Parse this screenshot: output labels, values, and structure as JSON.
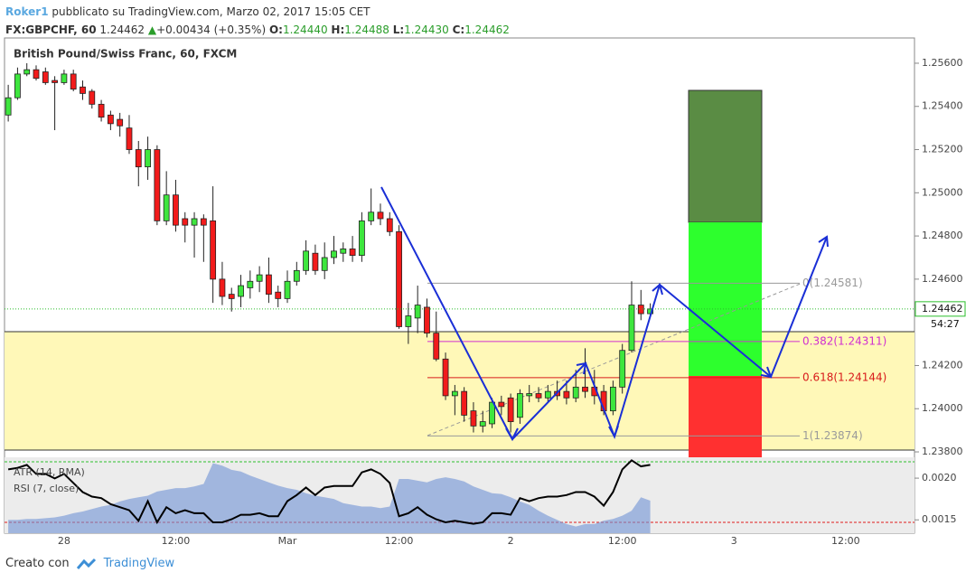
{
  "header": {
    "author": "Roker1",
    "published": "pubblicato su TradingView.com, Marzo 02, 2017 15:05 CET",
    "symbol": "FX:GBPCHF, 60",
    "last": "1.24462",
    "change": "+0.00434 (+0.35%)",
    "ohlc": [
      {
        "key": "O:",
        "value": "1.24440"
      },
      {
        "key": "H:",
        "value": "1.24488"
      },
      {
        "key": "L:",
        "value": "1.24430"
      },
      {
        "key": "C:",
        "value": "1.24462"
      }
    ]
  },
  "chart_data": [
    {
      "type": "candlestick",
      "title": "British Pound/Swiss Franc, 60, FXCM",
      "up_color": "#3ee63e",
      "down_color": "#f21b1b",
      "x": [
        -6,
        -5,
        -4,
        -3,
        -2,
        -1,
        0,
        1,
        2,
        3,
        4,
        5,
        6,
        7,
        8,
        9,
        10,
        11,
        12,
        13,
        14,
        15,
        16,
        17,
        18,
        19,
        20,
        21,
        22,
        23,
        24,
        25,
        26,
        27,
        28,
        29,
        30,
        31,
        32,
        33,
        34,
        35,
        36,
        37,
        38,
        39,
        40,
        41,
        42,
        43,
        44,
        45,
        46,
        47,
        48,
        49,
        50,
        51,
        52,
        53,
        54,
        55,
        56,
        57,
        58,
        59,
        60,
        61,
        62,
        63
      ],
      "open": [
        1.2536,
        1.2544,
        1.2555,
        1.2557,
        1.2556,
        1.2552,
        1.2551,
        1.2555,
        1.2549,
        1.2547,
        1.2541,
        1.2536,
        1.2534,
        1.253,
        1.252,
        1.2512,
        1.252,
        1.2487,
        1.2499,
        1.2488,
        1.2485,
        1.2488,
        1.2487,
        1.246,
        1.2453,
        1.2452,
        1.2456,
        1.2459,
        1.2462,
        1.2454,
        1.2451,
        1.2459,
        1.2464,
        1.2472,
        1.2464,
        1.247,
        1.2472,
        1.2474,
        1.2471,
        1.2487,
        1.2491,
        1.2488,
        1.2482,
        1.2438,
        1.2442,
        1.2447,
        1.2435,
        1.2423,
        1.2406,
        1.2408,
        1.2399,
        1.2392,
        1.2393,
        1.2403,
        1.2405,
        1.2396,
        1.2406,
        1.2407,
        1.2405,
        1.2408,
        1.2408,
        1.2405,
        1.241,
        1.241,
        1.2408,
        1.2399,
        1.241,
        1.2427,
        1.2448,
        1.2444
      ],
      "high": [
        1.255,
        1.2558,
        1.256,
        1.2559,
        1.2558,
        1.2554,
        1.2557,
        1.2557,
        1.2552,
        1.2548,
        1.2543,
        1.2538,
        1.2537,
        1.2536,
        1.2524,
        1.2526,
        1.2522,
        1.251,
        1.2506,
        1.2491,
        1.2491,
        1.249,
        1.2503,
        1.2468,
        1.2456,
        1.2462,
        1.2464,
        1.2466,
        1.247,
        1.2457,
        1.2464,
        1.2468,
        1.2478,
        1.2476,
        1.2477,
        1.248,
        1.2477,
        1.248,
        1.2491,
        1.2502,
        1.2495,
        1.2491,
        1.2485,
        1.2449,
        1.2457,
        1.2451,
        1.2445,
        1.2426,
        1.2411,
        1.241,
        1.2403,
        1.2399,
        1.2405,
        1.2406,
        1.2407,
        1.2409,
        1.2411,
        1.241,
        1.2411,
        1.2413,
        1.2413,
        1.2418,
        1.2428,
        1.2418,
        1.2411,
        1.2413,
        1.243,
        1.2459,
        1.2455,
        1.24488
      ],
      "low": [
        1.2533,
        1.2543,
        1.2554,
        1.2552,
        1.255,
        1.2529,
        1.255,
        1.2547,
        1.2543,
        1.2539,
        1.2533,
        1.2529,
        1.2526,
        1.2518,
        1.2503,
        1.2506,
        1.2485,
        1.2485,
        1.2482,
        1.2477,
        1.247,
        1.2468,
        1.2449,
        1.2448,
        1.2445,
        1.2447,
        1.2451,
        1.2454,
        1.2449,
        1.2447,
        1.2449,
        1.2457,
        1.2462,
        1.2462,
        1.246,
        1.2467,
        1.2468,
        1.2468,
        1.2468,
        1.2485,
        1.2485,
        1.248,
        1.2437,
        1.243,
        1.2435,
        1.2433,
        1.2422,
        1.2404,
        1.2397,
        1.2394,
        1.2389,
        1.2389,
        1.2391,
        1.2397,
        1.2389,
        1.2393,
        1.2403,
        1.2403,
        1.2403,
        1.2404,
        1.2402,
        1.2403,
        1.2405,
        1.2402,
        1.2397,
        1.2397,
        1.2407,
        1.2426,
        1.2441,
        1.2443
      ],
      "close": [
        1.2544,
        1.2555,
        1.2557,
        1.2553,
        1.2551,
        1.2551,
        1.2555,
        1.2548,
        1.2546,
        1.2541,
        1.2535,
        1.2532,
        1.2531,
        1.252,
        1.2512,
        1.252,
        1.2487,
        1.2499,
        1.2485,
        1.2485,
        1.2488,
        1.2485,
        1.246,
        1.2452,
        1.2451,
        1.2457,
        1.2459,
        1.2462,
        1.2453,
        1.2451,
        1.2459,
        1.2464,
        1.2473,
        1.2464,
        1.247,
        1.2473,
        1.2474,
        1.2471,
        1.2487,
        1.2491,
        1.2488,
        1.2482,
        1.2438,
        1.2443,
        1.2448,
        1.2435,
        1.2423,
        1.2406,
        1.2408,
        1.2397,
        1.2392,
        1.2394,
        1.2403,
        1.2401,
        1.2394,
        1.2407,
        1.2407,
        1.2405,
        1.2408,
        1.2406,
        1.2405,
        1.241,
        1.2408,
        1.2406,
        1.2399,
        1.241,
        1.2427,
        1.2448,
        1.2444,
        1.24462
      ],
      "xlim": [
        -6.4,
        91.4
      ],
      "xticks": [
        {
          "value": 0,
          "label": "28"
        },
        {
          "value": 12,
          "label": "12:00"
        },
        {
          "value": 24,
          "label": "Mar"
        },
        {
          "value": 36,
          "label": "12:00"
        },
        {
          "value": 48,
          "label": "2"
        },
        {
          "value": 60,
          "label": "12:00"
        },
        {
          "value": 72,
          "label": "3"
        },
        {
          "value": 84,
          "label": "12:00"
        }
      ],
      "ylim": [
        1.23775,
        1.25717
      ],
      "yticks": [
        {
          "value": 1.256,
          "label": "1.25600"
        },
        {
          "value": 1.254,
          "label": "1.25400"
        },
        {
          "value": 1.252,
          "label": "1.25200"
        },
        {
          "value": 1.25,
          "label": "1.25000"
        },
        {
          "value": 1.248,
          "label": "1.24800"
        },
        {
          "value": 1.246,
          "label": "1.24600"
        },
        {
          "value": 1.242,
          "label": "1.24200"
        },
        {
          "value": 1.24,
          "label": "1.24000"
        },
        {
          "value": 1.238,
          "label": "1.23800"
        }
      ],
      "grid": true,
      "last_price": {
        "value": 1.24462,
        "label": "1.24462"
      },
      "countdown": "54:27",
      "fib": [
        {
          "label": "0(1.24581)",
          "value": 1.24581,
          "color": "#9a9a9a"
        },
        {
          "label": "0.382(1.24311)",
          "value": 1.24311,
          "color": "#d030d0"
        },
        {
          "label": "0.618(1.24144)",
          "value": 1.24144,
          "color": "#d81b1b"
        },
        {
          "label": "1(1.23874)",
          "value": 1.23874,
          "color": "#9a9a9a"
        }
      ]
    },
    {
      "type": "indicator",
      "series": [
        {
          "name": "ATR (14, RMA)",
          "color": "#6f93d6",
          "values": [
            0.0015,
            0.0015,
            0.00151,
            0.00151,
            0.00152,
            0.00153,
            0.00155,
            0.00158,
            0.0016,
            0.00163,
            0.00166,
            0.00168,
            0.00172,
            0.00175,
            0.00177,
            0.00179,
            0.00184,
            0.00186,
            0.00188,
            0.00188,
            0.0019,
            0.00193,
            0.00218,
            0.00215,
            0.0021,
            0.00208,
            0.00203,
            0.00199,
            0.00195,
            0.00191,
            0.00188,
            0.00186,
            0.00182,
            0.00179,
            0.00177,
            0.00175,
            0.0017,
            0.00168,
            0.00166,
            0.00166,
            0.00164,
            0.00166,
            0.00199,
            0.00199,
            0.00197,
            0.00195,
            0.00199,
            0.00201,
            0.00199,
            0.00196,
            0.0019,
            0.00186,
            0.00182,
            0.00181,
            0.00177,
            0.00172,
            0.00168,
            0.00161,
            0.00155,
            0.0015,
            0.00145,
            0.00142,
            0.00145,
            0.00145,
            0.00149,
            0.00151,
            0.00155,
            0.00161,
            0.00177,
            0.00173
          ]
        },
        {
          "name": "RSI (7, close)",
          "color": "#000000",
          "axis": "y2",
          "values": [
            65,
            66,
            68,
            62,
            62,
            59,
            62,
            56,
            50,
            47,
            46,
            42,
            40,
            38,
            31,
            44,
            30,
            40,
            36,
            38,
            36,
            36,
            30,
            30,
            32,
            35,
            35,
            36,
            34,
            34,
            44,
            48,
            53,
            48,
            53,
            54,
            54,
            54,
            63,
            65,
            62,
            56,
            34,
            36,
            40,
            35,
            32,
            30,
            31,
            30,
            29,
            30,
            36,
            36,
            35,
            46,
            44,
            46,
            47,
            47,
            48,
            50,
            50,
            47,
            41,
            50,
            65,
            71,
            67,
            68
          ]
        }
      ],
      "ylim": [
        0.00134,
        0.00225
      ],
      "yticks": [
        {
          "value": 0.002,
          "label": "0.0020"
        },
        {
          "value": 0.0015,
          "label": "0.0015"
        }
      ],
      "y2lim": [
        22.8,
        73
      ],
      "levels": [
        {
          "value": 70,
          "color": "#2bbf2b"
        },
        {
          "value": 30,
          "color": "#e01b1b"
        }
      ]
    }
  ],
  "footer": {
    "created": "Creato con",
    "brand": "TradingView"
  }
}
